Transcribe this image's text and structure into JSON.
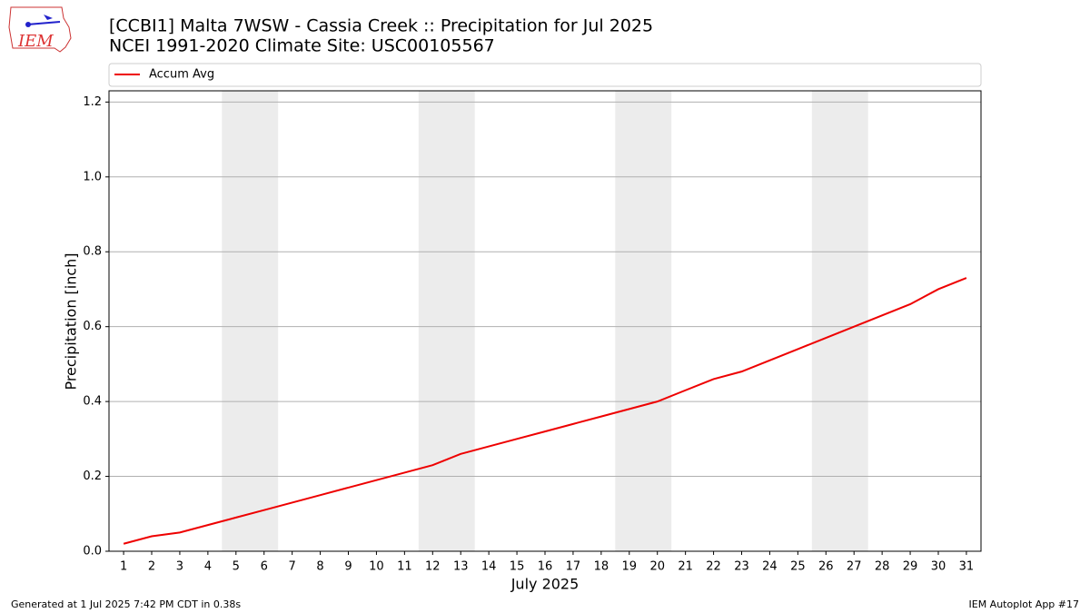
{
  "logo_text": "IEM",
  "chart_data": {
    "type": "line",
    "title": "[CCBI1] Malta 7WSW - Cassia Creek :: Precipitation for Jul 2025",
    "subtitle": "NCEI 1991-2020 Climate Site: USC00105567",
    "x_label": "July 2025",
    "y_label": "Precipitation [inch]",
    "x": [
      1,
      2,
      3,
      4,
      5,
      6,
      7,
      8,
      9,
      10,
      11,
      12,
      13,
      14,
      15,
      16,
      17,
      18,
      19,
      20,
      21,
      22,
      23,
      24,
      25,
      26,
      27,
      28,
      29,
      30,
      31
    ],
    "series": [
      {
        "name": "Accum Avg",
        "color": "#ee0000",
        "values": [
          0.02,
          0.04,
          0.05,
          0.07,
          0.09,
          0.11,
          0.13,
          0.15,
          0.17,
          0.19,
          0.21,
          0.23,
          0.26,
          0.28,
          0.3,
          0.32,
          0.34,
          0.36,
          0.38,
          0.4,
          0.43,
          0.46,
          0.48,
          0.51,
          0.54,
          0.57,
          0.6,
          0.63,
          0.66,
          0.7,
          0.73
        ]
      }
    ],
    "xlim": [
      0.48,
      31.52
    ],
    "ylim": [
      0,
      1.23
    ],
    "xticks": [
      1,
      2,
      3,
      4,
      5,
      6,
      7,
      8,
      9,
      10,
      11,
      12,
      13,
      14,
      15,
      16,
      17,
      18,
      19,
      20,
      21,
      22,
      23,
      24,
      25,
      26,
      27,
      28,
      29,
      30,
      31
    ],
    "yticks": [
      {
        "value": 0,
        "label": "0.0"
      },
      0.2,
      0.4,
      0.6,
      0.8,
      {
        "value": 1,
        "label": "1.0"
      },
      1.2
    ],
    "grid": true,
    "shaded_spans": [
      [
        4.5,
        6.5
      ],
      [
        11.5,
        13.5
      ],
      [
        18.5,
        20.5
      ],
      [
        25.5,
        27.5
      ]
    ],
    "shade_color": "#ececec",
    "legend": "top"
  },
  "footer": {
    "left": "Generated at 1 Jul 2025 7:42 PM CDT in 0.38s",
    "right": "IEM Autoplot App #17"
  }
}
